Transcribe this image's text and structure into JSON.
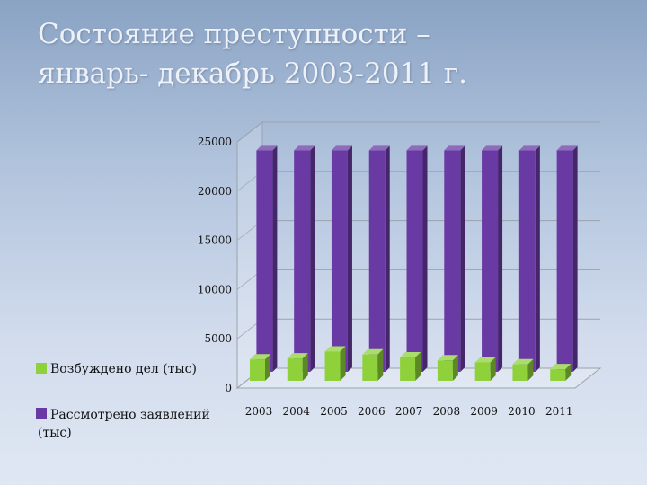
{
  "slide": {
    "title_line1": "Состояние преступности –",
    "title_line2": "январь- декабрь 2003-2011 г."
  },
  "chart_data": {
    "type": "bar",
    "categories": [
      "2003",
      "2004",
      "2005",
      "2006",
      "2007",
      "2008",
      "2009",
      "2010",
      "2011"
    ],
    "series": [
      {
        "name": "Возбуждено дел (тыс)",
        "values": [
          2900,
          3000,
          3700,
          3400,
          3100,
          2800,
          2600,
          2400,
          1900
        ],
        "color": "#8fd13b"
      },
      {
        "name": "Рассмотрено заявлений (тыс)",
        "values": [
          22500,
          22500,
          22500,
          22500,
          22500,
          22500,
          22500,
          22500,
          22500
        ],
        "color": "#6a3aa4"
      }
    ],
    "yticks": [
      "0",
      "5000",
      "10000",
      "15000",
      "20000",
      "25000"
    ],
    "ylim": [
      0,
      25000
    ],
    "grid": true,
    "legend_position": "left",
    "style": "3d-clustered-column"
  }
}
